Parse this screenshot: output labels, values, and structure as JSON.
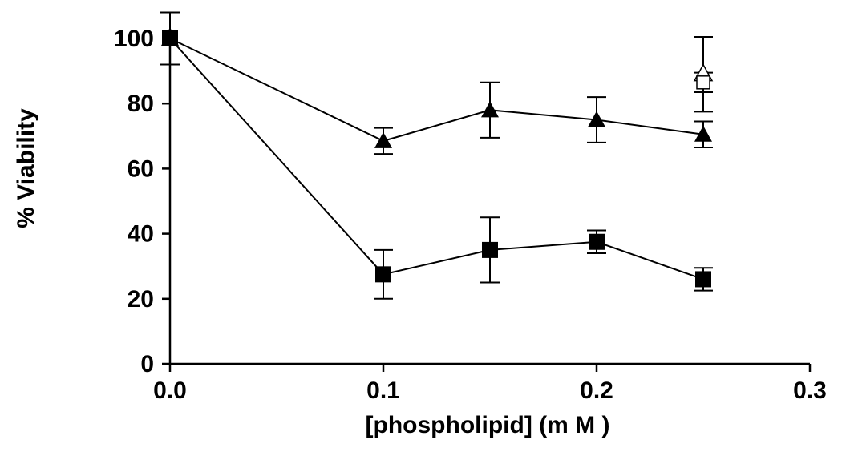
{
  "chart_data": {
    "type": "scatter",
    "title": "",
    "xlabel": "[phospholipid] (m M )",
    "ylabel": "% Viability",
    "xlim": [
      0,
      0.3
    ],
    "ylim": [
      0,
      100
    ],
    "x_ticks": [
      "0.0",
      "0.1",
      "0.2",
      "0.3"
    ],
    "y_ticks": [
      "0",
      "20",
      "40",
      "60",
      "80",
      "100"
    ],
    "grid": false,
    "legend": "none",
    "series": [
      {
        "marker": "filled-square",
        "connected": true,
        "color": "#000000",
        "x": [
          0,
          0.1,
          0.15,
          0.2,
          0.25
        ],
        "values": [
          100,
          27.5,
          35,
          37.5,
          26
        ],
        "error": [
          8,
          7.5,
          10,
          3.5,
          3.5
        ]
      },
      {
        "marker": "filled-triangle",
        "connected": true,
        "color": "#000000",
        "x": [
          0,
          0.1,
          0.15,
          0.2,
          0.25
        ],
        "values": [
          100,
          68.5,
          78,
          75,
          70.5
        ],
        "error": [
          8,
          4,
          8.5,
          7,
          4
        ]
      },
      {
        "marker": "open-triangle",
        "connected": false,
        "color": "#000000",
        "x": [
          0.25
        ],
        "values": [
          89
        ],
        "error": [
          11.5
        ]
      },
      {
        "marker": "open-square",
        "connected": false,
        "color": "#000000",
        "x": [
          0.25
        ],
        "values": [
          86.5
        ],
        "error": [
          3
        ]
      }
    ]
  }
}
